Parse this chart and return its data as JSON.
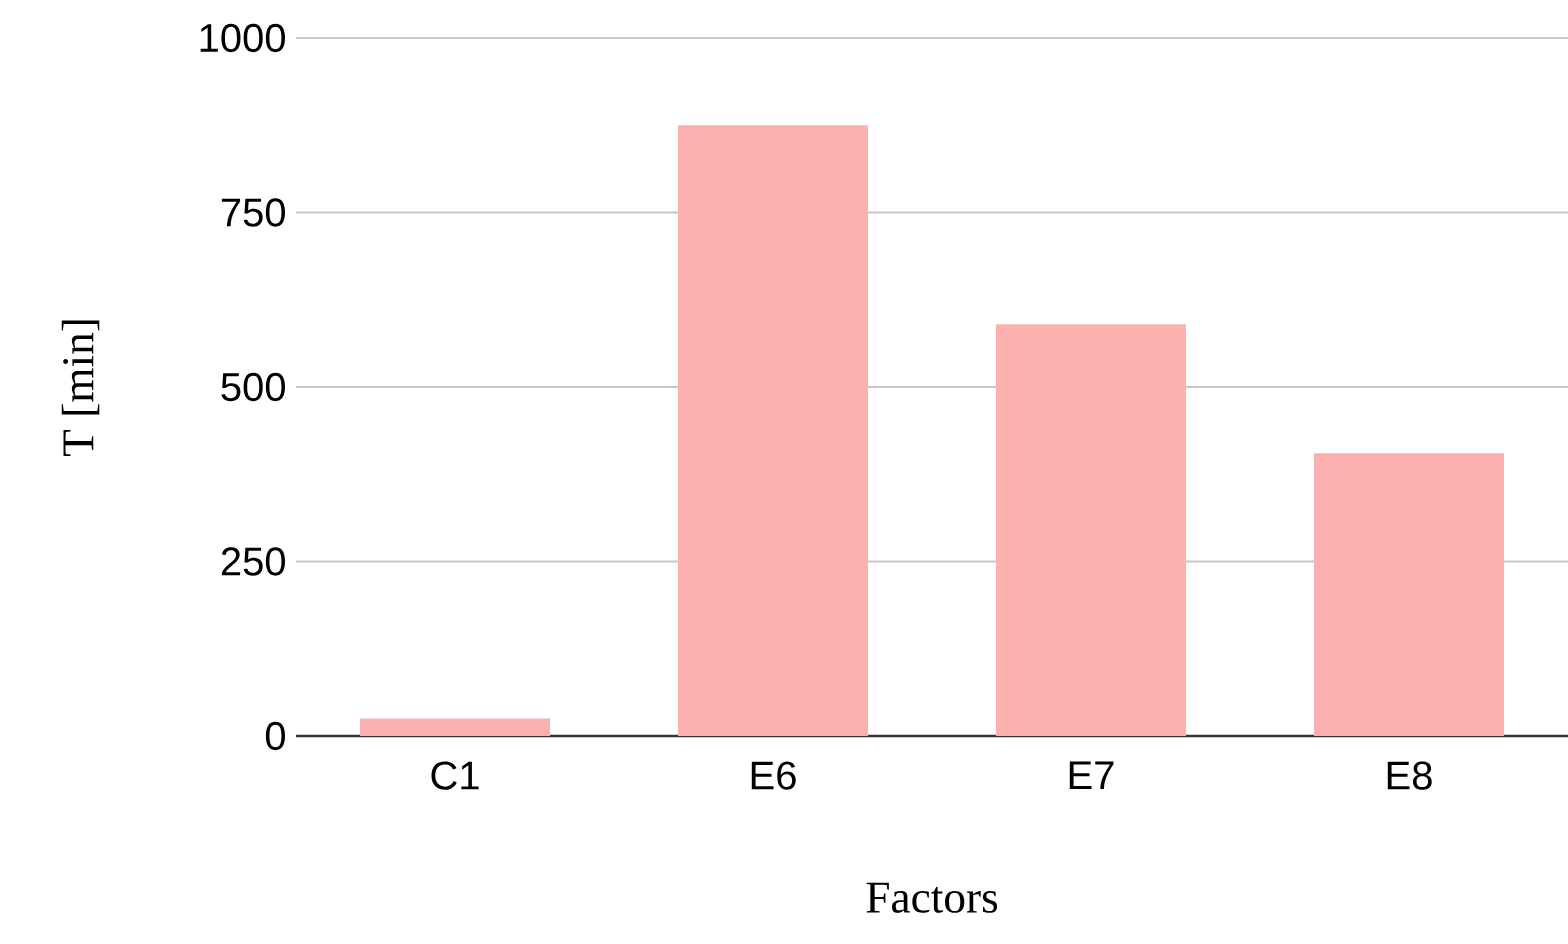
{
  "chart_data": {
    "type": "bar",
    "xlabel": "Factors",
    "ylabel": "T [min]",
    "categories": [
      "C1",
      "E6",
      "E7",
      "E8"
    ],
    "values": [
      25,
      875,
      590,
      405
    ],
    "color": "#fdb0b0",
    "ylim": [
      0,
      1000
    ],
    "yticks": [
      0,
      250,
      500,
      750,
      1000
    ],
    "grid": "y"
  }
}
